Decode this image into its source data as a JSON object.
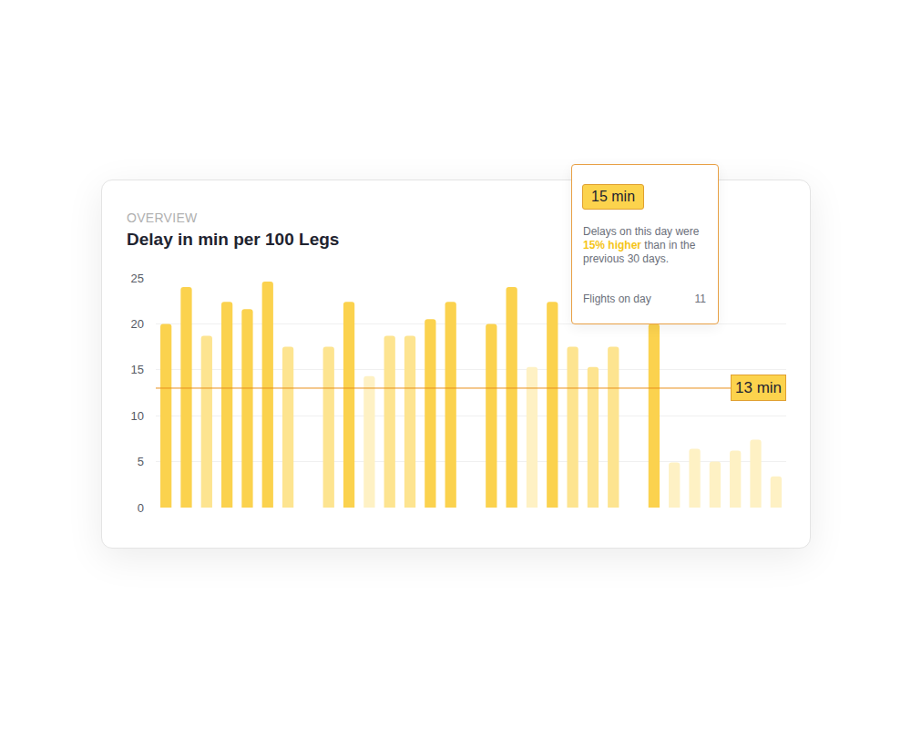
{
  "chart_data": {
    "type": "bar",
    "overview": "OVERVIEW",
    "title": "Delay in min per 100 Legs",
    "categories": [
      null,
      null,
      null,
      null,
      null,
      null,
      null,
      null,
      null,
      null,
      null,
      null,
      null,
      null,
      null,
      null,
      null,
      null,
      null,
      null,
      null,
      null,
      null,
      null,
      null,
      null,
      null,
      null,
      null,
      null,
      null
    ],
    "values": [
      20,
      24,
      18.7,
      22.4,
      21.6,
      24.6,
      17.5,
      null,
      17.5,
      22.4,
      14.3,
      18.7,
      18.7,
      20.5,
      22.4,
      null,
      20,
      24,
      15.3,
      22.4,
      17.5,
      15.3,
      17.5,
      null,
      20,
      4.9,
      6.4,
      5,
      6.2,
      7.4,
      3.4
    ],
    "colors": [
      "#fbd24e",
      "#fbd24e",
      "#fde490",
      "#fbd24e",
      "#fbd24e",
      "#fbd24e",
      "#fde490",
      null,
      "#fde490",
      "#fbd24e",
      "#fef1c4",
      "#fde490",
      "#fde490",
      "#fbd24e",
      "#fbd24e",
      null,
      "#fbd24e",
      "#fbd24e",
      "#fef1c4",
      "#fbd24e",
      "#fde490",
      "#fde490",
      "#fde490",
      null,
      "#fbd24e",
      "#fef1c4",
      "#fef1c4",
      "#fef1c4",
      "#fef1c4",
      "#fef1c4",
      "#fef1c4"
    ],
    "ylim": [
      0,
      25
    ],
    "yticks": [
      0,
      5,
      10,
      15,
      20,
      25
    ],
    "grid": true,
    "tick_labels": "y",
    "data_labels": false,
    "reference_line": {
      "value": 13,
      "label": "13 min"
    },
    "tooltip": {
      "title": "15 min",
      "text": [
        "Delays on this day were",
        "15% higher",
        "than in the previous 30 days."
      ],
      "footer_label": "Flights on day",
      "footer_value": 11
    }
  }
}
